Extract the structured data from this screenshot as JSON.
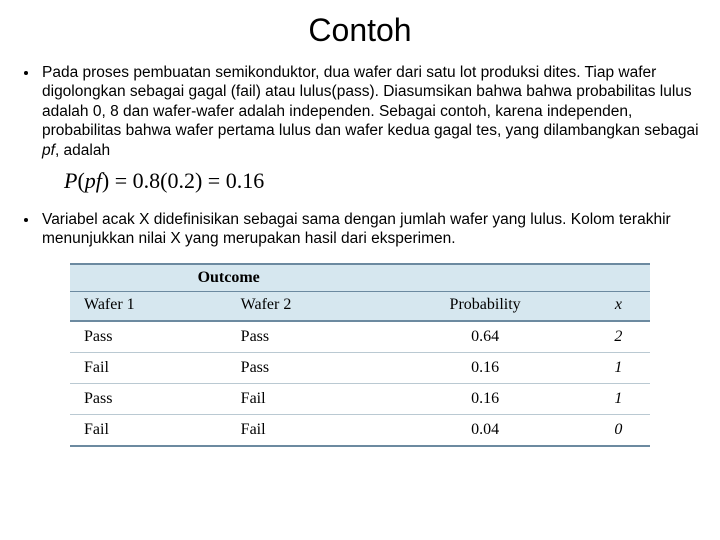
{
  "title": "Contoh",
  "para1_a": "Pada proses pembuatan semikonduktor, dua wafer dari satu lot produksi dites. Tiap wafer digolongkan sebagai gagal (fail) atau lulus(pass). Diasumsikan bahwa bahwa probabilitas lulus adalah 0, 8 dan wafer-wafer adalah independen. Sebagai contoh, karena independen, probabilitas bahwa wafer pertama lulus dan wafer kedua gagal tes, yang dilambangkan sebagai ",
  "para1_pf": "pf",
  "para1_b": ", adalah",
  "equation": {
    "lhs_P": "P",
    "lhs_open": "(",
    "lhs_arg": "pf",
    "lhs_close": ")",
    "eq": " = ",
    "rhs": "0.8(0.2) = 0.16"
  },
  "para2": "Variabel acak X didefinisikan sebagai sama dengan jumlah wafer yang lulus. Kolom terakhir menunjukkan nilai X yang merupakan hasil dari eksperimen.",
  "table": {
    "outcome_label": "Outcome",
    "headers": {
      "w1": "Wafer 1",
      "w2": "Wafer 2",
      "prob": "Probability",
      "x": "x"
    },
    "style": {
      "header_bg": "#d6e7ef",
      "border_strong": "#6c8aa0",
      "border_light": "#bac9d2",
      "font": "Times New Roman"
    },
    "rows": [
      {
        "w1": "Pass",
        "w2": "Pass",
        "prob": "0.64",
        "x": "2"
      },
      {
        "w1": "Fail",
        "w2": "Pass",
        "prob": "0.16",
        "x": "1"
      },
      {
        "w1": "Pass",
        "w2": "Fail",
        "prob": "0.16",
        "x": "1"
      },
      {
        "w1": "Fail",
        "w2": "Fail",
        "prob": "0.04",
        "x": "0"
      }
    ]
  }
}
